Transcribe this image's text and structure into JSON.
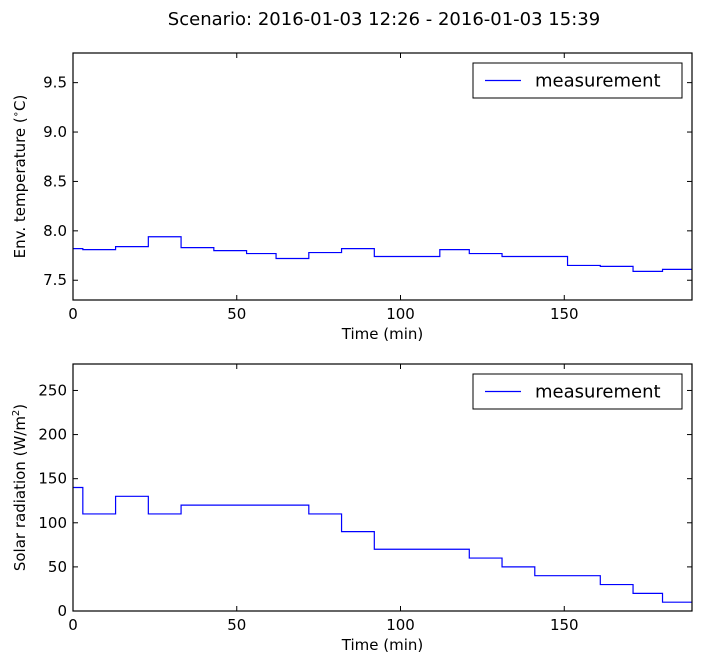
{
  "title": "Scenario: 2016-01-03 12:26 - 2016-01-03 15:39",
  "chart_data": [
    {
      "type": "line",
      "step": "post",
      "xlabel": "Time (min)",
      "ylabel": "Env. temperature (",
      "ylabel_sup": "∘",
      "ylabel_end": "C)",
      "xlim": [
        0,
        189
      ],
      "ylim": [
        7.3,
        9.8
      ],
      "xticks": [
        0,
        50,
        100,
        150
      ],
      "xtick_labels": [
        "0",
        "50",
        "100",
        "150"
      ],
      "yticks": [
        7.5,
        8.0,
        8.5,
        9.0,
        9.5
      ],
      "ytick_labels": [
        "7.5",
        "8.0",
        "8.5",
        "9.0",
        "9.5"
      ],
      "legend": {
        "position": "top-right",
        "entries": [
          "measurement"
        ]
      },
      "series": [
        {
          "name": "measurement",
          "color": "#0000ff",
          "x": [
            0,
            3,
            13,
            23,
            33,
            43,
            53,
            62,
            72,
            82,
            92,
            112,
            121,
            131,
            151,
            161,
            171,
            180,
            189
          ],
          "y": [
            7.82,
            7.81,
            7.84,
            7.94,
            7.83,
            7.8,
            7.77,
            7.72,
            7.78,
            7.82,
            7.74,
            7.81,
            7.77,
            7.74,
            7.65,
            7.64,
            7.59,
            7.61,
            7.61
          ]
        }
      ]
    },
    {
      "type": "line",
      "step": "post",
      "xlabel": "Time (min)",
      "ylabel": "Solar radiation (W/m",
      "ylabel_sup": "2",
      "ylabel_end": ")",
      "xlim": [
        0,
        189
      ],
      "ylim": [
        0,
        280
      ],
      "xticks": [
        0,
        50,
        100,
        150
      ],
      "xtick_labels": [
        "0",
        "50",
        "100",
        "150"
      ],
      "yticks": [
        0,
        50,
        100,
        150,
        200,
        250
      ],
      "ytick_labels": [
        "0",
        "50",
        "100",
        "150",
        "200",
        "250"
      ],
      "legend": {
        "position": "top-right",
        "entries": [
          "measurement"
        ]
      },
      "series": [
        {
          "name": "measurement",
          "color": "#0000ff",
          "x": [
            0,
            3,
            13,
            23,
            33,
            72,
            82,
            92,
            121,
            131,
            141,
            161,
            171,
            180,
            189
          ],
          "y": [
            140,
            110,
            130,
            110,
            120,
            110,
            90,
            70,
            60,
            50,
            40,
            30,
            20,
            10,
            10
          ]
        }
      ]
    }
  ]
}
